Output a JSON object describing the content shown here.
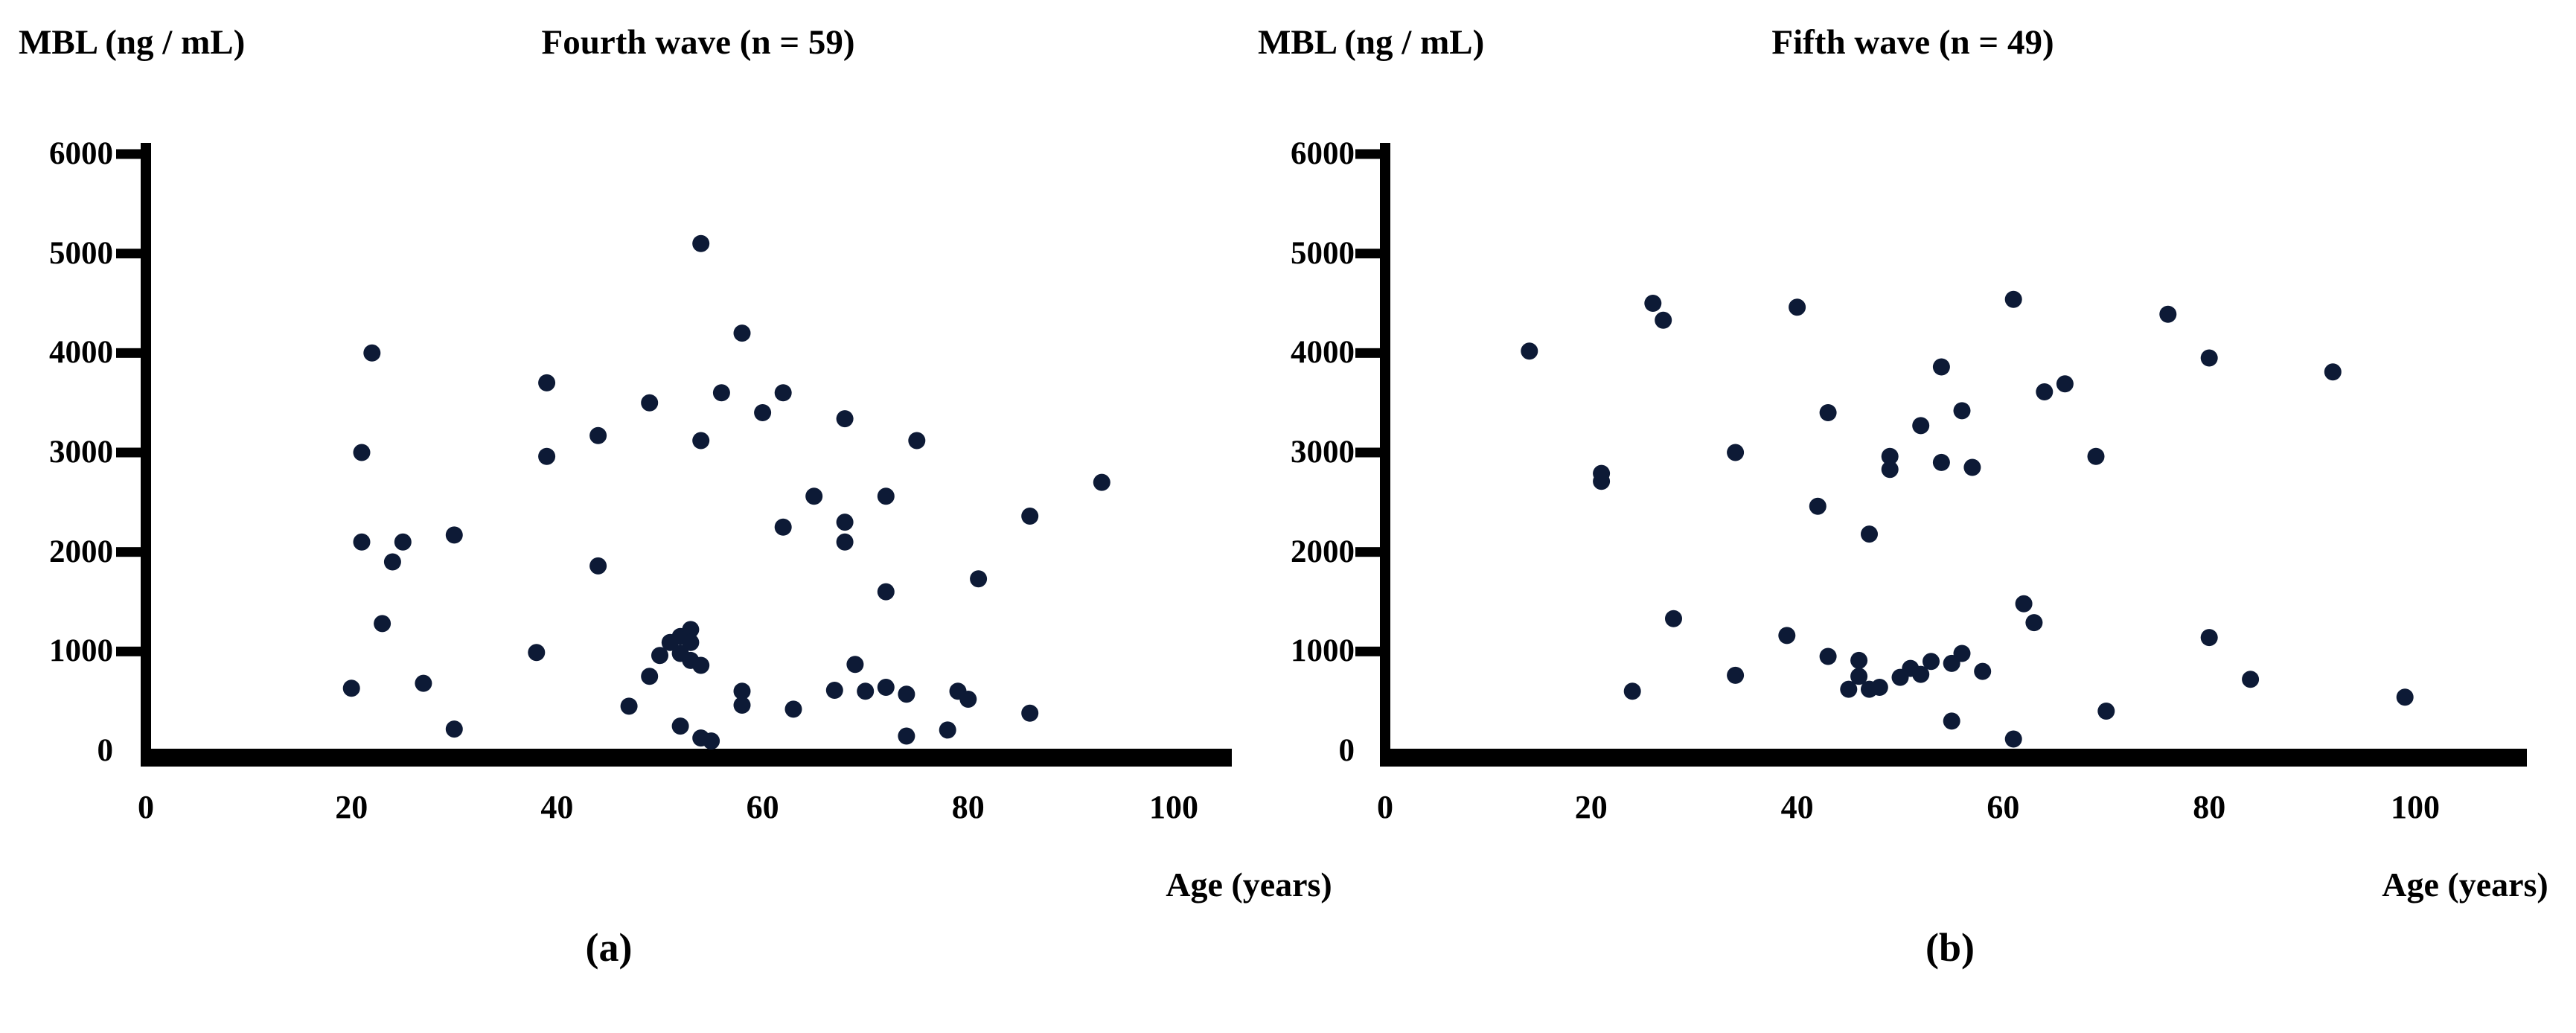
{
  "chart_data": [
    {
      "type": "scatter",
      "panel": "a",
      "ylabel_text": "MBL (ng / mL)",
      "title": "Fourth wave (n = 59)",
      "xlabel": "Age (years)",
      "caption": "(a)",
      "n": 59,
      "xlim": [
        0,
        100
      ],
      "ylim": [
        0,
        6000
      ],
      "x_ticks": [
        0,
        20,
        40,
        60,
        80,
        100
      ],
      "y_ticks": [
        0,
        1000,
        2000,
        3000,
        4000,
        5000,
        6000
      ],
      "grid": false,
      "legend": "none",
      "points_xy": [
        [
          20,
          630
        ],
        [
          21,
          3000
        ],
        [
          21,
          2100
        ],
        [
          22,
          4000
        ],
        [
          23,
          1280
        ],
        [
          24,
          1900
        ],
        [
          25,
          2100
        ],
        [
          27,
          680
        ],
        [
          30,
          2170
        ],
        [
          30,
          220
        ],
        [
          38,
          990
        ],
        [
          39,
          3700
        ],
        [
          39,
          2960
        ],
        [
          44,
          3170
        ],
        [
          44,
          1860
        ],
        [
          47,
          450
        ],
        [
          49,
          3500
        ],
        [
          49,
          750
        ],
        [
          50,
          960
        ],
        [
          51,
          1090
        ],
        [
          52,
          1150
        ],
        [
          52,
          980
        ],
        [
          52,
          250
        ],
        [
          53,
          1220
        ],
        [
          53,
          1090
        ],
        [
          53,
          910
        ],
        [
          54,
          5100
        ],
        [
          54,
          3120
        ],
        [
          54,
          860
        ],
        [
          54,
          130
        ],
        [
          55,
          100
        ],
        [
          56,
          3600
        ],
        [
          58,
          4200
        ],
        [
          58,
          600
        ],
        [
          58,
          460
        ],
        [
          60,
          3400
        ],
        [
          62,
          3600
        ],
        [
          62,
          2250
        ],
        [
          63,
          420
        ],
        [
          65,
          2560
        ],
        [
          67,
          610
        ],
        [
          68,
          3340
        ],
        [
          68,
          2300
        ],
        [
          68,
          2100
        ],
        [
          69,
          870
        ],
        [
          70,
          600
        ],
        [
          72,
          2560
        ],
        [
          72,
          1600
        ],
        [
          72,
          640
        ],
        [
          74,
          570
        ],
        [
          74,
          150
        ],
        [
          75,
          3120
        ],
        [
          78,
          210
        ],
        [
          79,
          600
        ],
        [
          80,
          520
        ],
        [
          81,
          1730
        ],
        [
          86,
          2360
        ],
        [
          86,
          380
        ],
        [
          93,
          2700
        ]
      ]
    },
    {
      "type": "scatter",
      "panel": "b",
      "ylabel_text": "MBL (ng / mL)",
      "title": "Fifth wave (n = 49)",
      "xlabel": "Age (years)",
      "caption": "(b)",
      "n": 49,
      "xlim": [
        0,
        100
      ],
      "ylim": [
        0,
        6000
      ],
      "x_ticks": [
        0,
        20,
        40,
        60,
        80,
        100
      ],
      "y_ticks": [
        0,
        1000,
        2000,
        3000,
        4000,
        5000,
        6000
      ],
      "grid": false,
      "legend": "none",
      "points_xy": [
        [
          14,
          4020
        ],
        [
          21,
          2790
        ],
        [
          21,
          2710
        ],
        [
          24,
          600
        ],
        [
          26,
          4500
        ],
        [
          27,
          4330
        ],
        [
          28,
          1330
        ],
        [
          34,
          3000
        ],
        [
          34,
          760
        ],
        [
          39,
          1160
        ],
        [
          40,
          4460
        ],
        [
          42,
          2460
        ],
        [
          43,
          3400
        ],
        [
          43,
          950
        ],
        [
          45,
          620
        ],
        [
          46,
          910
        ],
        [
          46,
          750
        ],
        [
          47,
          2180
        ],
        [
          47,
          620
        ],
        [
          48,
          640
        ],
        [
          49,
          2960
        ],
        [
          49,
          2830
        ],
        [
          50,
          740
        ],
        [
          51,
          830
        ],
        [
          52,
          3270
        ],
        [
          52,
          770
        ],
        [
          53,
          900
        ],
        [
          54,
          3860
        ],
        [
          54,
          2900
        ],
        [
          55,
          880
        ],
        [
          55,
          300
        ],
        [
          56,
          3420
        ],
        [
          56,
          980
        ],
        [
          57,
          2850
        ],
        [
          58,
          800
        ],
        [
          61,
          4540
        ],
        [
          61,
          120
        ],
        [
          62,
          1480
        ],
        [
          63,
          1290
        ],
        [
          64,
          3610
        ],
        [
          66,
          3690
        ],
        [
          69,
          2960
        ],
        [
          70,
          400
        ],
        [
          76,
          4390
        ],
        [
          80,
          3950
        ],
        [
          80,
          1140
        ],
        [
          84,
          720
        ],
        [
          92,
          3810
        ],
        [
          99,
          540
        ]
      ]
    }
  ],
  "style": {
    "dot_color": "#0d1a36",
    "axis_color": "#000000",
    "background": "#ffffff"
  }
}
